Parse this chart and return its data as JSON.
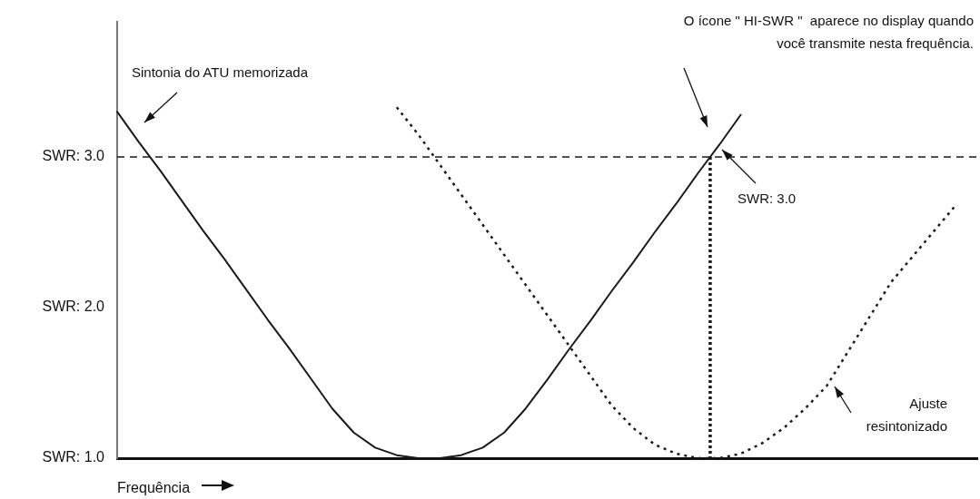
{
  "chart_data": {
    "type": "line",
    "xlabel": "Frequência",
    "marker": "none",
    "categories": [
      null,
      null,
      null,
      null,
      null,
      null,
      null,
      null,
      null,
      null,
      null,
      null,
      null,
      null,
      null,
      null,
      null,
      null,
      null,
      null,
      null,
      null,
      null,
      null,
      null,
      null,
      null,
      null,
      null,
      null,
      null,
      null,
      null,
      null,
      null,
      null,
      null,
      null,
      null,
      null,
      null
    ],
    "ylim": [
      1,
      3.9
    ],
    "yticks": [
      {
        "value": 1,
        "label": "SWR: 1.0"
      },
      {
        "value": 2,
        "label": "SWR: 2.0"
      },
      {
        "value": 3,
        "label": "SWR: 3.0"
      }
    ],
    "series": [
      {
        "color": "#1a1a1a",
        "line_style": "solid",
        "values": [
          3.3,
          3.1,
          2.91,
          2.71,
          2.51,
          2.32,
          2.12,
          1.92,
          1.73,
          1.53,
          1.33,
          1.17,
          1.07,
          1.02,
          1.0,
          1.0,
          1.02,
          1.07,
          1.17,
          1.33,
          1.52,
          1.72,
          1.91,
          2.11,
          2.3,
          2.5,
          2.69,
          2.89,
          3.08,
          3.28,
          null,
          null,
          null,
          null,
          null,
          null,
          null,
          null,
          null,
          null,
          null
        ]
      },
      {
        "color": "#1a1a1a",
        "line_style": "dotted",
        "values": [
          null,
          null,
          null,
          null,
          null,
          null,
          null,
          null,
          null,
          null,
          null,
          null,
          null,
          3.33,
          3.15,
          2.95,
          2.75,
          2.55,
          2.35,
          2.15,
          1.95,
          1.75,
          1.55,
          1.35,
          1.2,
          1.09,
          1.03,
          1.0,
          1.0,
          1.03,
          1.1,
          1.2,
          1.33,
          1.48,
          1.71,
          1.94,
          2.17,
          2.34,
          2.51,
          2.68,
          null
        ]
      }
    ],
    "ref_lines": [
      {
        "axis": "y",
        "value": 3,
        "color": "#1a1a1a",
        "line_style": "dashed"
      }
    ],
    "annotations": [
      "Sintonia do ATU memorizada",
      "O ícone \" HI-SWR \"  aparece no display quando você transmite nesta frequência.",
      "SWR: 3.0",
      "Ajuste resintonizado"
    ]
  }
}
